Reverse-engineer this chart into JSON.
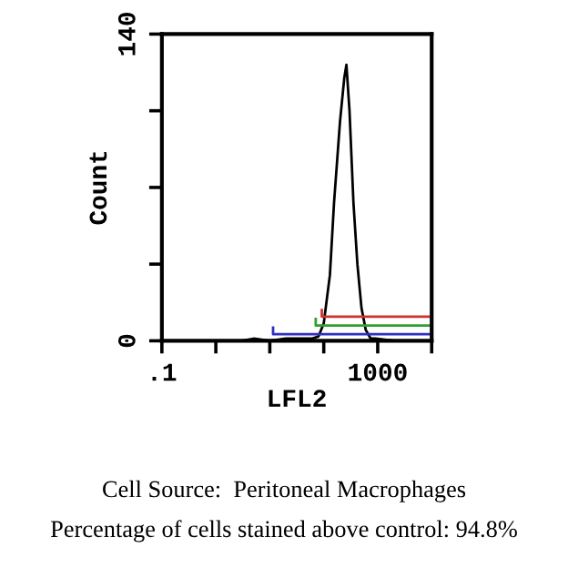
{
  "chart_data": {
    "type": "line",
    "xlabel": "LFL2",
    "ylabel": "Count",
    "log": "x",
    "xlim": [
      0.1,
      10000
    ],
    "ylim": [
      0,
      140
    ],
    "xticks": [
      {
        "value": 0.1,
        "label": ".1"
      },
      {
        "value": 1,
        "label": null
      },
      {
        "value": 10,
        "label": null
      },
      {
        "value": 100,
        "label": null
      },
      {
        "value": 1000,
        "label": "1000"
      },
      {
        "value": 10000,
        "label": null
      }
    ],
    "yticks": [
      0,
      {
        "value": 35,
        "label": null
      },
      {
        "value": 70,
        "label": null
      },
      {
        "value": 105,
        "label": null
      },
      140
    ],
    "grid": false,
    "legend": false,
    "series": [
      {
        "color": "#000000",
        "x": [
          0.1,
          1,
          3,
          5,
          10,
          20,
          40,
          60,
          80,
          100,
          130,
          155,
          200,
          240,
          263,
          300,
          355,
          420,
          500,
          600,
          740,
          900,
          2000,
          10000
        ],
        "values": [
          0,
          0,
          0,
          1,
          0,
          1,
          1,
          1,
          2,
          8,
          30,
          63,
          100,
          120,
          126,
          105,
          63,
          35,
          15,
          5,
          1,
          1,
          0,
          0
        ]
      },
      {
        "color": "#d03030",
        "x": [
          92,
          92,
          10000,
          10000
        ],
        "values": [
          14,
          11,
          11,
          14
        ]
      },
      {
        "color": "#30a030",
        "x": [
          71,
          71,
          10000,
          10000
        ],
        "values": [
          10,
          7,
          7,
          10
        ]
      },
      {
        "color": "#3030c0",
        "x": [
          11.5,
          11.5,
          10000,
          10000
        ],
        "values": [
          6,
          3,
          3,
          6
        ]
      }
    ],
    "annotations": [
      "Cell Source:  Peritoneal Macrophages",
      "Percentage of cells stained above control: 94.8%"
    ]
  }
}
